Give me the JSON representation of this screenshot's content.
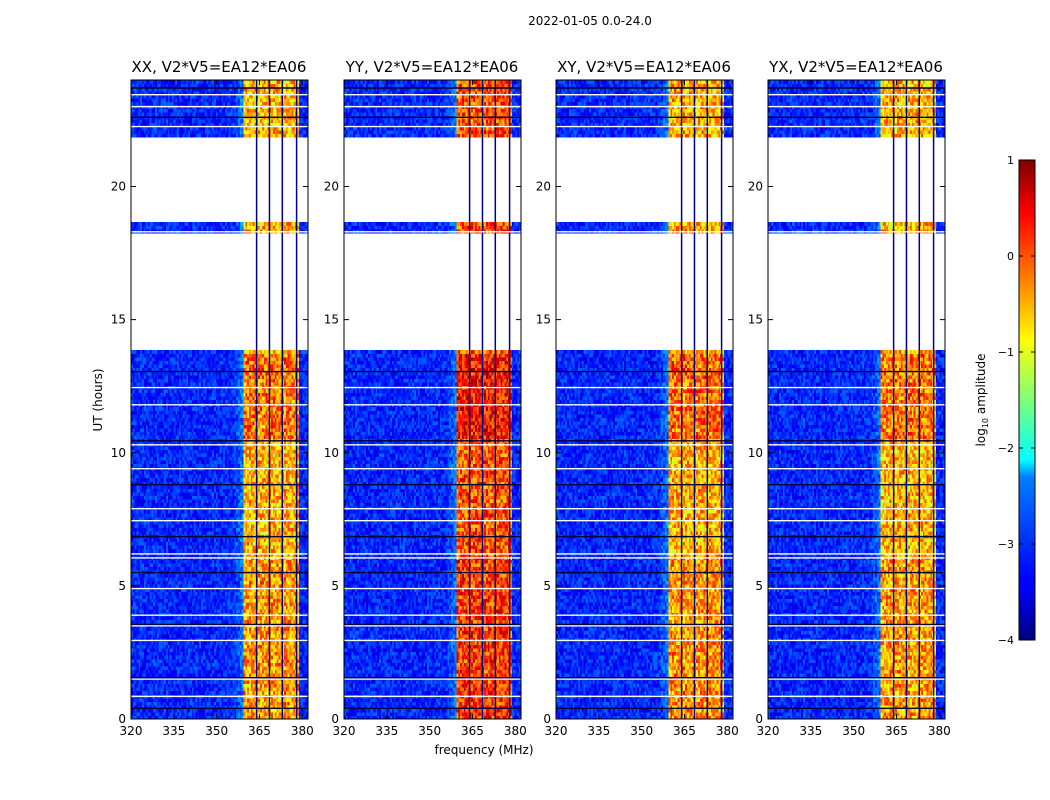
{
  "figure_title": "2022-01-05 0.0-24.0",
  "chart_data": {
    "type": "heatmap",
    "title": "2022-01-05 0.0-24.0",
    "xlabel": "frequency (MHz)",
    "ylabel": "UT (hours)",
    "colorbar_label": "log10 amplitude",
    "colorbar_label_base": "log",
    "colorbar_label_sub": "10",
    "colorbar_label_rest": "amplitude",
    "colormap": "jet",
    "xlim": [
      320,
      382
    ],
    "ylim": [
      0,
      24
    ],
    "clim": [
      -4,
      1
    ],
    "x_ticks": [
      "320",
      "335",
      "350",
      "365",
      "380"
    ],
    "y_ticks": [
      "0",
      "5",
      "10",
      "15",
      "20"
    ],
    "colorbar_ticks": [
      "1",
      "0",
      "−1",
      "−2",
      "−3",
      "−4"
    ],
    "panels": [
      {
        "title": "XX, V2*V5=EA12*EA06",
        "polarization": "XX",
        "rfi_level": -0.55
      },
      {
        "title": "YY, V2*V5=EA12*EA06",
        "polarization": "YY",
        "rfi_level": -0.05
      },
      {
        "title": "XY, V2*V5=EA12*EA06",
        "polarization": "XY",
        "rfi_level": -0.5
      },
      {
        "title": "YX, V2*V5=EA12*EA06",
        "polarization": "YX",
        "rfi_level": -0.55
      }
    ],
    "background_level": -3.2,
    "rfi_band_mhz": [
      359.5,
      379
    ],
    "rfi_channel_gaps_mhz": [
      364,
      368.5,
      373,
      378
    ],
    "missing_data_ut_hours": [
      [
        13.85,
        18.25
      ],
      [
        18.65,
        21.8
      ]
    ],
    "flagged_ut_hours": [
      0.4,
      0.85,
      1.5,
      1.55,
      2.95,
      3.5,
      3.55,
      3.9,
      4.9,
      5.5,
      6.05,
      6.2,
      6.85,
      7.45,
      7.9,
      8.8,
      9.4,
      10.3,
      10.45,
      11.8,
      12.45,
      13.05,
      18.3,
      22.25,
      22.6,
      23.0,
      23.45,
      23.7
    ]
  }
}
